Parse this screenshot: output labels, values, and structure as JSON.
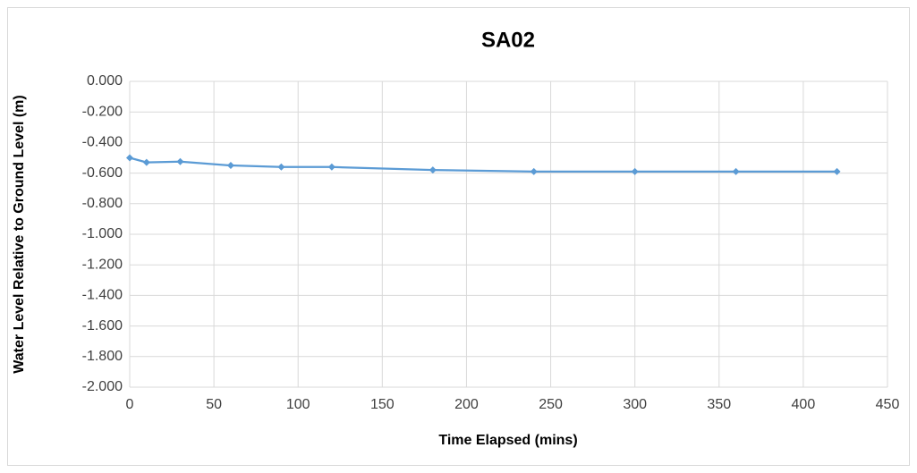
{
  "chart_data": {
    "type": "line",
    "title": "SA02",
    "x_label": "Time Elapsed (mins)",
    "y_label": "Water Level Relative to Ground Level (m)",
    "x": [
      0,
      10,
      30,
      60,
      90,
      120,
      180,
      240,
      300,
      360,
      420
    ],
    "series": [
      {
        "name": "SA02",
        "color": "#5b9bd5",
        "values": [
          -0.5,
          -0.53,
          -0.525,
          -0.55,
          -0.56,
          -0.56,
          -0.58,
          -0.59,
          -0.59,
          -0.59,
          -0.59
        ]
      }
    ],
    "xlim": [
      0,
      450
    ],
    "xticks": [
      0,
      50,
      100,
      150,
      200,
      250,
      300,
      350,
      400,
      450
    ],
    "ylim": [
      -2,
      0
    ],
    "yticks": [
      {
        "value": 0,
        "label": "0.000"
      },
      {
        "value": -0.2,
        "label": "-0.200"
      },
      {
        "value": -0.4,
        "label": "-0.400"
      },
      {
        "value": -0.6,
        "label": "-0.600"
      },
      {
        "value": -0.8,
        "label": "-0.800"
      },
      {
        "value": -1,
        "label": "-1.000"
      },
      {
        "value": -1.2,
        "label": "-1.200"
      },
      {
        "value": -1.4,
        "label": "-1.400"
      },
      {
        "value": -1.6,
        "label": "-1.600"
      },
      {
        "value": -1.8,
        "label": "-1.800"
      },
      {
        "value": -2,
        "label": "-2.000"
      }
    ],
    "grid": true
  }
}
